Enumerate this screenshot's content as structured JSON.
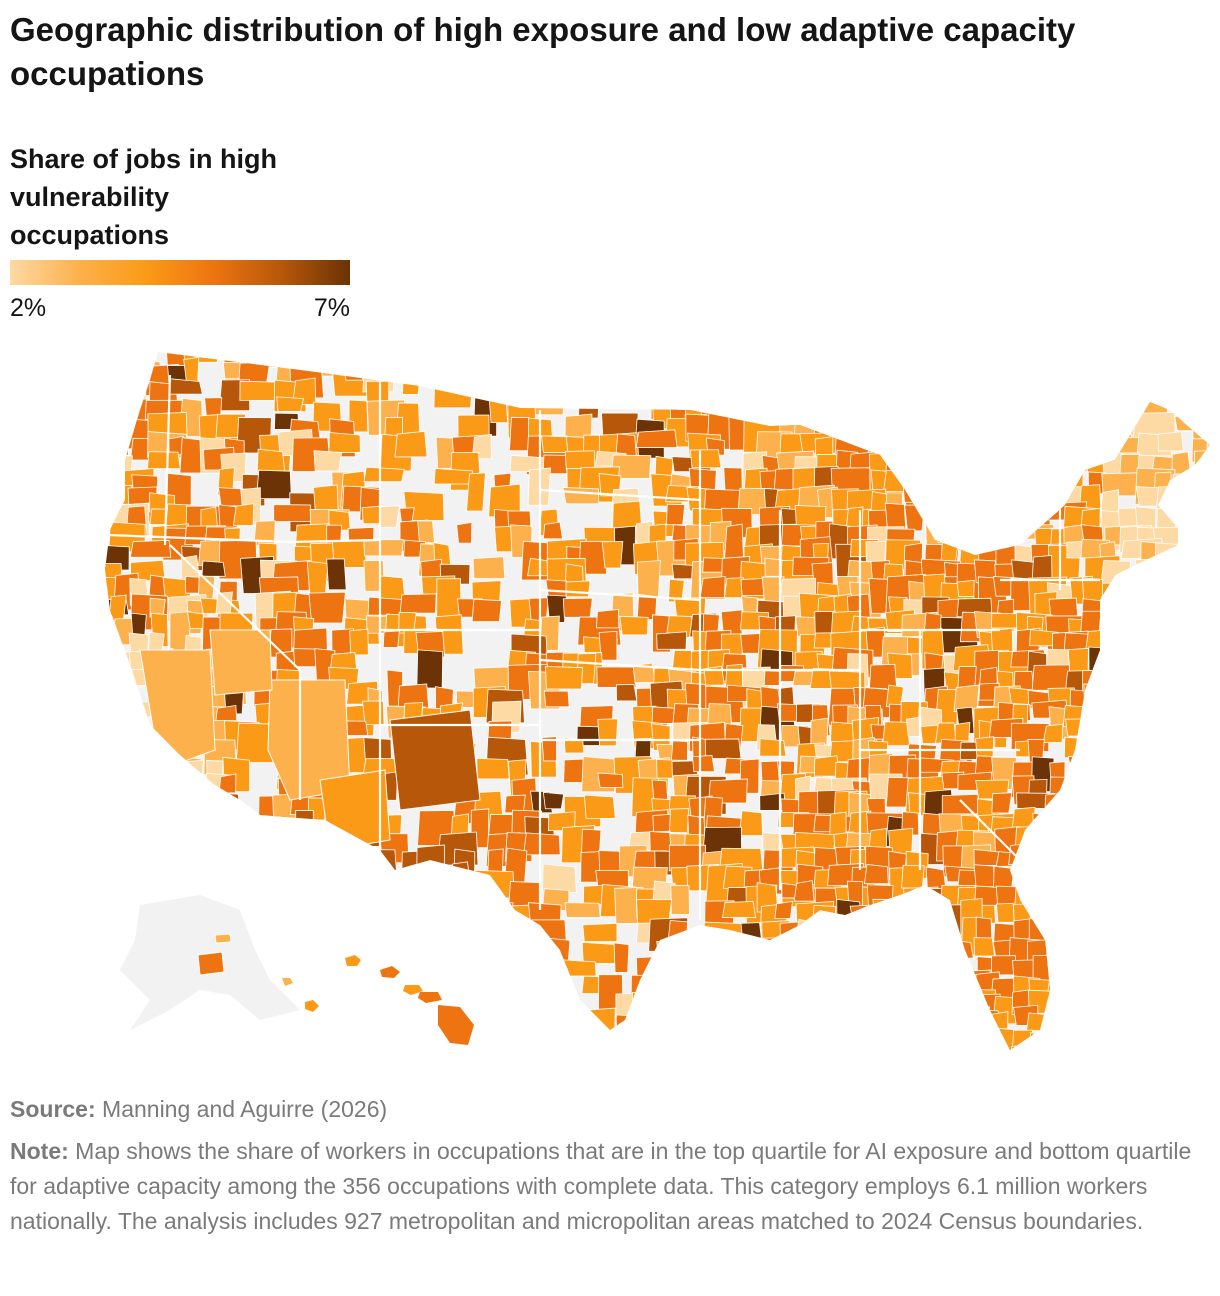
{
  "title": "Geographic distribution of high exposure and low adaptive capacity occupations",
  "legend": {
    "title": "Share of jobs in high vulnerability occupations",
    "min_label": "2%",
    "max_label": "7%",
    "min_value": 2,
    "max_value": 7,
    "colors": [
      "#fdd9a4",
      "#fdb14d",
      "#fb9a16",
      "#ed7411",
      "#b7570a",
      "#6b3306"
    ]
  },
  "map": {
    "type": "choropleth",
    "region": "United States (counties / metro & micropolitan areas)",
    "base_color": "#f2f2f2",
    "border_color": "#ffffff"
  },
  "footer": {
    "source_label": "Source:",
    "source_text": "Manning and Aguirre (2026)",
    "note_label": "Note:",
    "note_text": "Map shows the share of workers in occupations that are in the top quartile for AI exposure and bottom quartile for adaptive capacity among the 356 occupations with complete data. This category employs 6.1 million workers nationally. The analysis includes 927 metropolitan and micropolitan areas matched to 2024 Census boundaries."
  }
}
